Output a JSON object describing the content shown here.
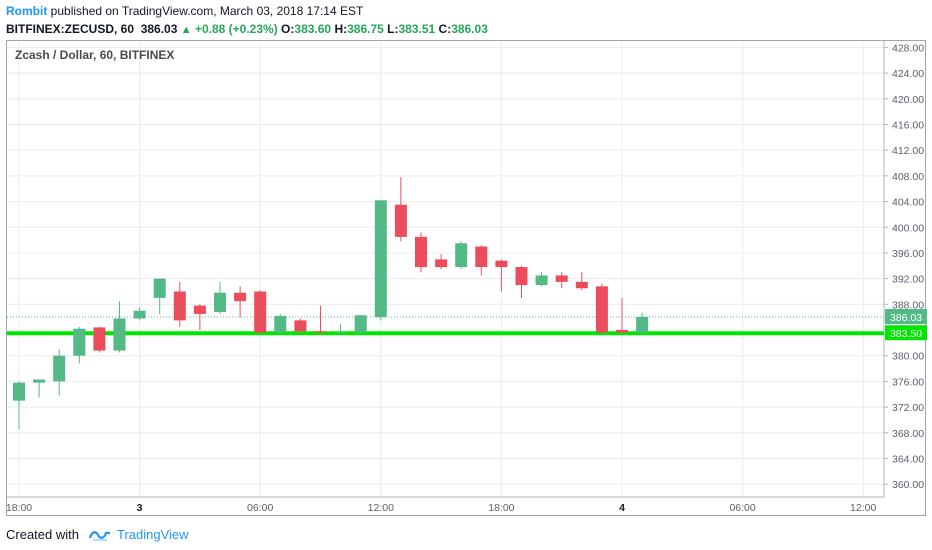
{
  "header": {
    "author": "Rombit",
    "published_text": "published on TradingView.com, March 03, 2018 17:14 EST",
    "symbol": "BITFINEX:ZECUSD, 60",
    "last": "386.03",
    "change": "+0.88 (+0.23%)",
    "o_label": "O:",
    "o_value": "383.60",
    "h_label": "H:",
    "h_value": "386.75",
    "l_label": "L:",
    "l_value": "383.51",
    "c_label": "C:",
    "c_value": "386.03"
  },
  "chart_data": {
    "type": "candlestick",
    "title": "Zcash / Dollar, 60, BITFINEX",
    "ylim": [
      358,
      429
    ],
    "y_ticks": [
      "360.00",
      "364.00",
      "368.00",
      "372.00",
      "376.00",
      "380.00",
      "384.00",
      "388.00",
      "392.00",
      "396.00",
      "400.00",
      "404.00",
      "408.00",
      "412.00",
      "416.00",
      "420.00",
      "424.00",
      "428.00"
    ],
    "x_ticks": [
      {
        "label": "18:00",
        "index": 0
      },
      {
        "label": "3",
        "index": 6
      },
      {
        "label": "06:00",
        "index": 12
      },
      {
        "label": "12:00",
        "index": 18
      },
      {
        "label": "18:00",
        "index": 24
      },
      {
        "label": "4",
        "index": 30
      },
      {
        "label": "06:00",
        "index": 36
      },
      {
        "label": "12:00",
        "index": 42
      }
    ],
    "candles": [
      {
        "o": 373.0,
        "h": 376.0,
        "l": 368.5,
        "c": 375.8
      },
      {
        "o": 375.8,
        "h": 376.2,
        "l": 373.5,
        "c": 376.3
      },
      {
        "o": 376.0,
        "h": 381.0,
        "l": 373.8,
        "c": 380.0
      },
      {
        "o": 380.0,
        "h": 384.5,
        "l": 378.8,
        "c": 384.2
      },
      {
        "o": 384.4,
        "h": 384.5,
        "l": 380.5,
        "c": 380.8
      },
      {
        "o": 380.8,
        "h": 388.5,
        "l": 380.5,
        "c": 385.8
      },
      {
        "o": 385.8,
        "h": 387.5,
        "l": 385.5,
        "c": 387.0
      },
      {
        "o": 389.0,
        "h": 392.0,
        "l": 386.5,
        "c": 392.0
      },
      {
        "o": 390.0,
        "h": 391.5,
        "l": 384.5,
        "c": 385.5
      },
      {
        "o": 387.8,
        "h": 388.0,
        "l": 384.0,
        "c": 386.5
      },
      {
        "o": 386.8,
        "h": 391.5,
        "l": 386.5,
        "c": 389.8
      },
      {
        "o": 389.8,
        "h": 390.8,
        "l": 386.0,
        "c": 388.5
      },
      {
        "o": 390.0,
        "h": 390.2,
        "l": 383.5,
        "c": 383.6
      },
      {
        "o": 383.6,
        "h": 386.5,
        "l": 383.5,
        "c": 386.2
      },
      {
        "o": 385.5,
        "h": 385.8,
        "l": 383.5,
        "c": 383.8
      },
      {
        "o": 383.8,
        "h": 387.8,
        "l": 383.5,
        "c": 383.6
      },
      {
        "o": 383.6,
        "h": 385.0,
        "l": 383.5,
        "c": 383.7
      },
      {
        "o": 383.6,
        "h": 386.2,
        "l": 383.5,
        "c": 386.3
      },
      {
        "o": 386.0,
        "h": 403.5,
        "l": 385.5,
        "c": 404.2
      },
      {
        "o": 403.5,
        "h": 407.8,
        "l": 397.8,
        "c": 398.5
      },
      {
        "o": 398.5,
        "h": 399.2,
        "l": 393.0,
        "c": 393.8
      },
      {
        "o": 395.0,
        "h": 395.8,
        "l": 393.5,
        "c": 393.8
      },
      {
        "o": 393.8,
        "h": 397.8,
        "l": 393.5,
        "c": 397.5
      },
      {
        "o": 397.0,
        "h": 397.2,
        "l": 392.5,
        "c": 393.8
      },
      {
        "o": 394.8,
        "h": 395.0,
        "l": 390.0,
        "c": 393.8
      },
      {
        "o": 393.8,
        "h": 394.0,
        "l": 389.0,
        "c": 391.0
      },
      {
        "o": 391.0,
        "h": 393.0,
        "l": 390.8,
        "c": 392.5
      },
      {
        "o": 392.5,
        "h": 393.0,
        "l": 390.5,
        "c": 391.5
      },
      {
        "o": 391.5,
        "h": 393.0,
        "l": 390.2,
        "c": 390.5
      },
      {
        "o": 390.8,
        "h": 391.2,
        "l": 383.5,
        "c": 383.6
      },
      {
        "o": 384.0,
        "h": 389.0,
        "l": 383.5,
        "c": 383.6
      },
      {
        "o": 383.6,
        "h": 386.75,
        "l": 383.51,
        "c": 386.03
      }
    ],
    "price_line": {
      "value": 386.03,
      "label": "386.03"
    },
    "support_line": {
      "value": 383.5,
      "label": "383.50"
    },
    "colors": {
      "up": "#53b987",
      "down": "#eb4d5c",
      "support": "#00e600",
      "grid": "#e9ecf0",
      "axis_text": "#5d606b",
      "price_label_bg": "#53b987"
    }
  },
  "footer": {
    "created_with": "Created with",
    "brand": "TradingView"
  }
}
